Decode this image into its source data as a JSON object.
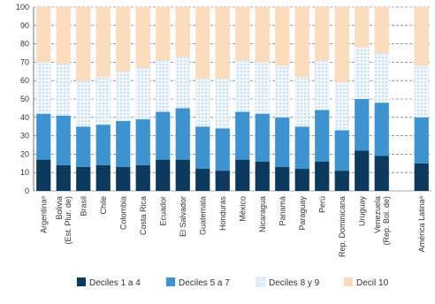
{
  "chart_data": {
    "type": "bar",
    "stacked": true,
    "ylim": [
      0,
      100
    ],
    "yticks": [
      0,
      10,
      20,
      30,
      40,
      50,
      60,
      70,
      80,
      90,
      100
    ],
    "grid": true,
    "legend_position": "bottom",
    "categories": [
      [
        "Argentinaᵃ"
      ],
      [
        "Bolivia",
        "(Est. Plur. de)"
      ],
      [
        "Brasil"
      ],
      [
        "Chile"
      ],
      [
        "Colombia"
      ],
      [
        "Costa Rica"
      ],
      [
        "Ecuador"
      ],
      [
        "El Salvador"
      ],
      [
        "Guatemala"
      ],
      [
        "Honduras"
      ],
      [
        "México"
      ],
      [
        "Nicaragua"
      ],
      [
        "Panamá"
      ],
      [
        "Paraguay"
      ],
      [
        "Perú"
      ],
      [
        "Rep. Dominicana"
      ],
      [
        "Uruguay"
      ],
      [
        "Venezuela",
        "(Rep. Bol. de)"
      ],
      [
        "América Latinaᵃ"
      ]
    ],
    "series": [
      {
        "name": "Deciles 1 a 4",
        "color": "#0b3a5c",
        "values": [
          17,
          14,
          13,
          14,
          13,
          14,
          17,
          17,
          12,
          11,
          17,
          16,
          13,
          12,
          16,
          11,
          22,
          19,
          15
        ]
      },
      {
        "name": "Deciles 5 a 7",
        "color": "#3d93d0",
        "values": [
          25,
          27,
          22,
          22,
          25,
          25,
          26,
          28,
          23,
          23,
          26,
          26,
          27,
          23,
          28,
          22,
          28,
          29,
          25
        ]
      },
      {
        "name": "Deciles 8 y 9",
        "color": "#dbe9f6",
        "values": [
          28,
          28,
          25,
          26,
          27,
          28,
          28,
          28,
          26,
          27,
          28,
          28,
          28,
          27,
          27,
          26,
          28,
          27,
          28
        ]
      },
      {
        "name": "Decil 10",
        "color": "#fbdcbd",
        "values": [
          30,
          31,
          40,
          38,
          35,
          33,
          29,
          27,
          39,
          39,
          29,
          30,
          32,
          38,
          29,
          41,
          22,
          25,
          32
        ]
      }
    ]
  }
}
